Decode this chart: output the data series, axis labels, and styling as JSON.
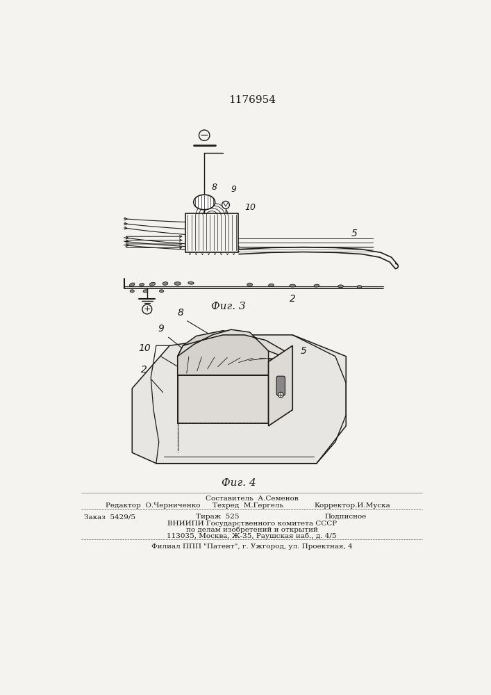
{
  "patent_number": "1176954",
  "fig3_label": "Фиг. 3",
  "fig4_label": "Фиг. 4",
  "footer_line1": "Составитель  А.Семенов",
  "footer_line2_left": "Редактор  О.Черниченко",
  "footer_line2_mid": "Техред  М.Гергель",
  "footer_line2_right": "Корректор.И.Муска",
  "footer_line3_left": "Заказ  5429/5",
  "footer_line3_mid": "Тираж  525",
  "footer_line3_right": "Подписное",
  "footer_line4": "ВНИИПИ Государственного комитета СССР",
  "footer_line5": "по делам изобретений и открытий",
  "footer_line6": "113035, Москва, Ж-35, Раушская наб., д. 4/5",
  "footer_line7": "Филиал ППП \"Патент\", г. Ужгород, ул. Проектная, 4",
  "bg_color": "#f5f3f0",
  "line_color": "#1a1a1a",
  "text_color": "#1a1a1a"
}
